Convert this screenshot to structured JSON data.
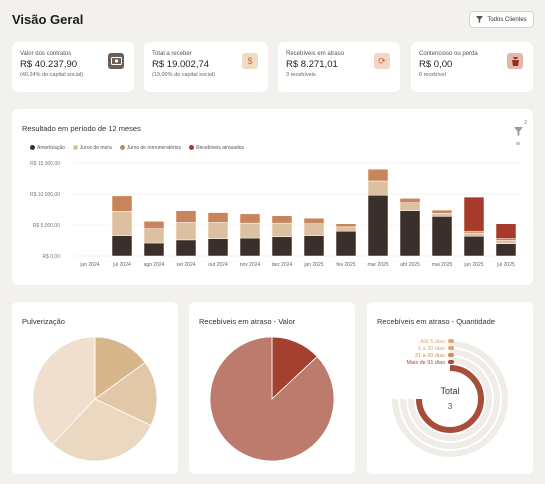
{
  "header": {
    "title": "Visão Geral",
    "filter_label": "Todos Clientes",
    "filter_icon": "funnel-icon"
  },
  "kpis": [
    {
      "label": "Valor dos contratos",
      "value": "R$ 40.237,90",
      "sub": "(40,24% do capital social)",
      "icon": "money-icon",
      "icon_bg": "#6b6058",
      "icon_fg": "#ffffff"
    },
    {
      "label": "Total a receber",
      "value": "R$ 19.002,74",
      "sub": "(19,00% do capital social)",
      "icon": "dollar-doc-icon",
      "icon_bg": "#f0dcc3",
      "icon_fg": "#b07a45"
    },
    {
      "label": "Recebíveis em atraso",
      "value": "R$ 8.271,01",
      "sub": "3 recebíveis",
      "icon": "refresh-icon",
      "icon_bg": "#f3d7c6",
      "icon_fg": "#c06a3c"
    },
    {
      "label": "Contencioso ou perda",
      "value": "R$ 0,00",
      "sub": "0 recebível",
      "icon": "bag-icon",
      "icon_bg": "#e6b7ad",
      "icon_fg": "#8b3327"
    }
  ],
  "main_chart": {
    "title": "Resultado em período de 12 meses",
    "filter_badge": "2",
    "legend": [
      "Amortização",
      "Juros de mora",
      "Juros de remuneratórios",
      "Recebíveis atrasados"
    ],
    "colors": {
      "amort": "#3b2f2b",
      "mora": "#dcc0a0",
      "remun": "#c8845a",
      "atras": "#a73b2b"
    }
  },
  "pulverizacao": {
    "title": "Pulverização"
  },
  "atraso_valor": {
    "title": "Recebíveis em atraso - Valor"
  },
  "atraso_qtd": {
    "title": "Recebíveis em atraso - Quantidade",
    "legend": [
      "Até 5 dias",
      "6 a 30 dias",
      "31 a 90 dias",
      "Mais de 91 dias"
    ],
    "total_label": "Total",
    "total_value": "3"
  },
  "chart_data": [
    {
      "type": "bar",
      "title": "Resultado em período de 12 meses",
      "categories": [
        "jun 2024",
        "jul 2024",
        "ago 2024",
        "set 2024",
        "out 2024",
        "nov 2024",
        "dez 2024",
        "jan 2025",
        "fev 2025",
        "mar 2025",
        "abr 2025",
        "mai 2025",
        "jun 2025",
        "jul 2025"
      ],
      "yticks": [
        "R$ 0,00",
        "R$ 5.000,00",
        "R$ 10.000,00",
        "R$ 15.000,00"
      ],
      "ylim": [
        0,
        15000
      ],
      "stacked": true,
      "series": [
        {
          "name": "Amortização",
          "values": [
            0,
            3300,
            2100,
            2600,
            2800,
            2900,
            3100,
            3300,
            4000,
            9800,
            7300,
            6400,
            3200,
            2000
          ]
        },
        {
          "name": "Juros de mora",
          "values": [
            0,
            3900,
            2300,
            2800,
            2600,
            2400,
            2200,
            1900,
            700,
            2300,
            1300,
            500,
            500,
            500
          ]
        },
        {
          "name": "Juros de remuneratórios",
          "values": [
            0,
            2500,
            1200,
            1900,
            1600,
            1500,
            1200,
            900,
            500,
            1900,
            700,
            500,
            300,
            300
          ]
        },
        {
          "name": "Recebíveis atrasados",
          "values": [
            0,
            0,
            0,
            0,
            0,
            0,
            0,
            0,
            0,
            0,
            0,
            0,
            5500,
            2400
          ]
        }
      ],
      "legend_position": "top-left",
      "grid": true
    },
    {
      "type": "pie",
      "title": "Pulverização",
      "slices": [
        {
          "value": 15,
          "color": "#d7b68b"
        },
        {
          "value": 17,
          "color": "#e2c8a6"
        },
        {
          "value": 30,
          "color": "#ebd8c0"
        },
        {
          "value": 38,
          "color": "#efdfcc"
        }
      ]
    },
    {
      "type": "pie",
      "title": "Recebíveis em atraso - Valor",
      "slices": [
        {
          "value": 13,
          "color": "#a3412e"
        },
        {
          "value": 87,
          "color": "#bd7b6d"
        }
      ]
    },
    {
      "type": "pie",
      "title": "Recebíveis em atraso - Quantidade",
      "series": [
        {
          "name": "Até 5 dias",
          "values": [
            0
          ],
          "color": "#e7a46a"
        },
        {
          "name": "6 a 30 dias",
          "values": [
            0
          ],
          "color": "#d9a77a"
        },
        {
          "name": "31 a 90 dias",
          "values": [
            0
          ],
          "color": "#c9925f"
        },
        {
          "name": "Mais de 91 dias",
          "values": [
            3
          ],
          "color": "#a74d3a"
        }
      ]
    }
  ]
}
